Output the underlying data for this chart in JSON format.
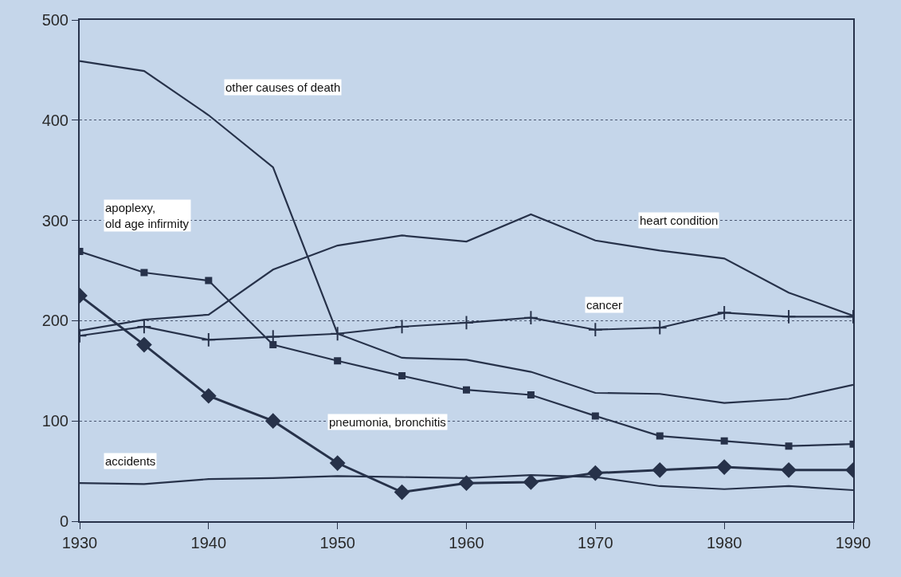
{
  "chart_data": {
    "type": "line",
    "x": [
      1930,
      1935,
      1940,
      1945,
      1950,
      1955,
      1960,
      1965,
      1970,
      1975,
      1980,
      1985,
      1990
    ],
    "series": [
      {
        "name": "other causes of death",
        "color": "#27324a",
        "marker": "none",
        "values": [
          459,
          449,
          405,
          353,
          187,
          163,
          161,
          149,
          128,
          127,
          118,
          122,
          136
        ]
      },
      {
        "name": "apoplexy,\nold age infirmity",
        "color": "#27324a",
        "marker": "square",
        "values": [
          269,
          248,
          240,
          176,
          160,
          145,
          131,
          126,
          105,
          85,
          80,
          75,
          77
        ]
      },
      {
        "name": "heart condition",
        "color": "#27324a",
        "marker": "none",
        "values": [
          190,
          201,
          206,
          251,
          275,
          285,
          279,
          306,
          280,
          270,
          262,
          228,
          205
        ]
      },
      {
        "name": "cancer",
        "color": "#27324a",
        "marker": "cross",
        "values": [
          185,
          194,
          181,
          184,
          187,
          194,
          198,
          203,
          191,
          193,
          208,
          204,
          204
        ]
      },
      {
        "name": "pneumonia, bronchitis",
        "color": "#27324a",
        "marker": "diamond",
        "values": [
          225,
          176,
          125,
          100,
          58,
          29,
          38,
          39,
          48,
          51,
          54,
          51,
          51
        ]
      },
      {
        "name": "accidents",
        "color": "#27324a",
        "marker": "none",
        "values": [
          38,
          37,
          42,
          43,
          45,
          44,
          43,
          46,
          44,
          35,
          32,
          35,
          31
        ]
      }
    ],
    "xlim": [
      1930,
      1990
    ],
    "xticks": [
      1930,
      1940,
      1950,
      1960,
      1970,
      1980,
      1990
    ],
    "ylim": [
      0,
      500
    ],
    "yticks": [
      0,
      100,
      200,
      300,
      400,
      500
    ],
    "grid": "y",
    "line_style": "solid",
    "legend": false
  }
}
